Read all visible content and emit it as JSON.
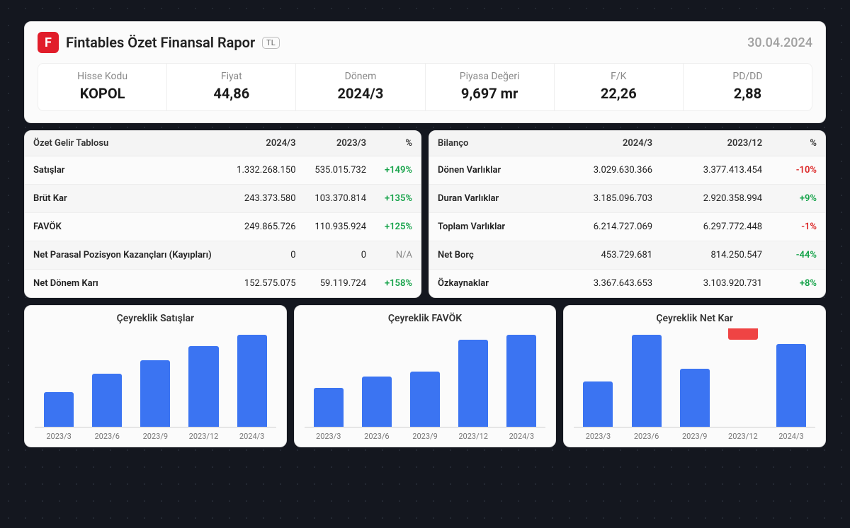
{
  "header": {
    "logo_letter": "F",
    "title": "Fintables Özet Finansal Rapor",
    "currency": "TL",
    "date": "30.04.2024"
  },
  "metrics": [
    {
      "label": "Hisse Kodu",
      "value": "KOPOL"
    },
    {
      "label": "Fiyat",
      "value": "44,86"
    },
    {
      "label": "Dönem",
      "value": "2024/3"
    },
    {
      "label": "Piyasa Değeri",
      "value": "9,697 mr"
    },
    {
      "label": "F/K",
      "value": "22,26"
    },
    {
      "label": "PD/DD",
      "value": "2,88"
    }
  ],
  "income": {
    "title": "Özet Gelir Tablosu",
    "cols": [
      "2024/3",
      "2023/3",
      "%"
    ],
    "rows": [
      {
        "label": "Satışlar",
        "a": "1.332.268.150",
        "b": "535.015.732",
        "pct": "+149%",
        "dir": "pos"
      },
      {
        "label": "Brüt Kar",
        "a": "243.373.580",
        "b": "103.370.814",
        "pct": "+135%",
        "dir": "pos"
      },
      {
        "label": "FAVÖK",
        "a": "249.865.726",
        "b": "110.935.924",
        "pct": "+125%",
        "dir": "pos"
      },
      {
        "label": "Net Parasal Pozisyon Kazançları (Kayıpları)",
        "a": "0",
        "b": "0",
        "pct": "N/A",
        "dir": "na"
      },
      {
        "label": "Net Dönem Karı",
        "a": "152.575.075",
        "b": "59.119.724",
        "pct": "+158%",
        "dir": "pos"
      }
    ]
  },
  "balance": {
    "title": "Bilanço",
    "cols": [
      "2024/3",
      "2023/12",
      "%"
    ],
    "rows": [
      {
        "label": "Dönen Varlıklar",
        "a": "3.029.630.366",
        "b": "3.377.413.454",
        "pct": "-10%",
        "dir": "neg"
      },
      {
        "label": "Duran Varlıklar",
        "a": "3.185.096.703",
        "b": "2.920.358.994",
        "pct": "+9%",
        "dir": "pos"
      },
      {
        "label": "Toplam Varlıklar",
        "a": "6.214.727.069",
        "b": "6.297.772.448",
        "pct": "-1%",
        "dir": "neg"
      },
      {
        "label": "Net Borç",
        "a": "453.729.681",
        "b": "814.250.547",
        "pct": "-44%",
        "dir": "pos"
      },
      {
        "label": "Özkaynaklar",
        "a": "3.367.643.653",
        "b": "3.103.920.731",
        "pct": "+8%",
        "dir": "pos"
      }
    ]
  },
  "charts": [
    {
      "title": "Çeyreklik Satışlar",
      "type": "bar",
      "categories": [
        "2023/3",
        "2023/6",
        "2023/9",
        "2023/12",
        "2024/3"
      ],
      "values": [
        38,
        58,
        72,
        88,
        100
      ],
      "bar_color": "#3b74f2",
      "neg_color": "#ef4444",
      "axis_color": "#d0d0d0",
      "label_fontsize": 11
    },
    {
      "title": "Çeyreklik FAVÖK",
      "type": "bar",
      "categories": [
        "2023/3",
        "2023/6",
        "2023/9",
        "2023/12",
        "2024/3"
      ],
      "values": [
        42,
        55,
        60,
        95,
        100
      ],
      "bar_color": "#3b74f2",
      "neg_color": "#ef4444",
      "axis_color": "#d0d0d0",
      "label_fontsize": 11
    },
    {
      "title": "Çeyreklik Net Kar",
      "type": "bar",
      "categories": [
        "2023/3",
        "2023/6",
        "2023/9",
        "2023/12",
        "2024/3"
      ],
      "values": [
        48,
        98,
        62,
        -12,
        88
      ],
      "bar_color": "#3b74f2",
      "neg_color": "#ef4444",
      "axis_color": "#d0d0d0",
      "label_fontsize": 11
    }
  ],
  "colors": {
    "brand": "#e11d2a",
    "positive": "#16a34a",
    "negative": "#dc2626",
    "bar": "#3b74f2",
    "card_bg": "#fbfbfb",
    "page_bg": "#14171f"
  }
}
